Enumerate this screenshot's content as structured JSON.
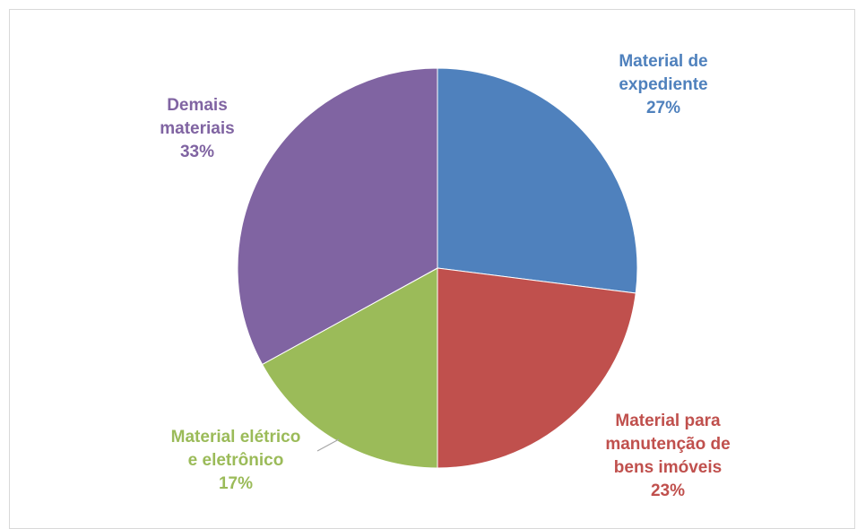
{
  "chart_data": {
    "type": "pie",
    "title": "",
    "slices": [
      {
        "name_lines": [
          "Material de",
          "expediente"
        ],
        "value": 27,
        "percent_label": "27%",
        "color": "#4F81BD"
      },
      {
        "name_lines": [
          "Material para",
          "manutenção de",
          "bens imóveis"
        ],
        "value": 23,
        "percent_label": "23%",
        "color": "#C0504D"
      },
      {
        "name_lines": [
          "Material elétrico",
          "e eletrônico"
        ],
        "value": 17,
        "percent_label": "17%",
        "color": "#9BBB59"
      },
      {
        "name_lines": [
          "Demais",
          "materiais"
        ],
        "value": 33,
        "percent_label": "33%",
        "color": "#8064A2"
      }
    ],
    "start_angle_deg": 0,
    "direction": "clockwise",
    "legend": "none",
    "data_labels": "outside-category-and-percent"
  }
}
